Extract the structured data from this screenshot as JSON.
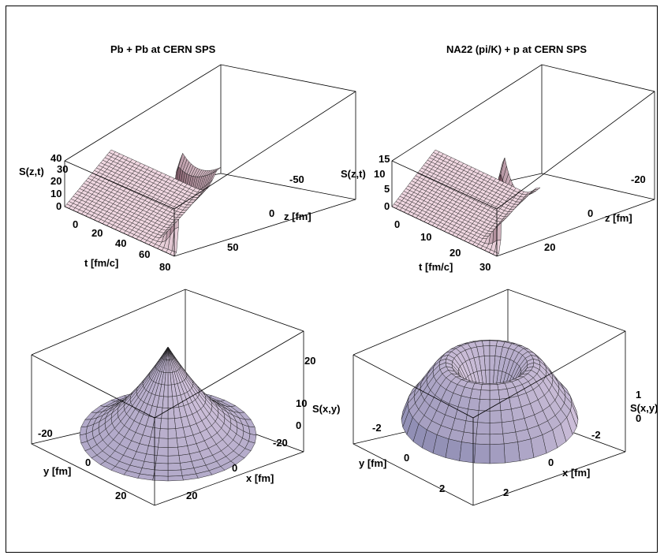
{
  "chart_data": [
    {
      "type": "surface",
      "title": "Pb + Pb at CERN SPS",
      "xlabel": "t [fm/c]",
      "ylabel": "z [fm]",
      "zlabel": "S(z,t)",
      "x_ticks": [
        "0",
        "20",
        "40",
        "60",
        "80"
      ],
      "y_ticks": [
        "-50",
        "0",
        "50"
      ],
      "z_ticks": [
        "0",
        "10",
        "20",
        "30",
        "40"
      ],
      "xlim": [
        0,
        80
      ],
      "ylim": [
        -70,
        70
      ],
      "zlim": [
        0,
        40
      ],
      "peak": {
        "t": 80,
        "z": 0,
        "S": 40
      }
    },
    {
      "type": "surface",
      "title": "NA22 (pi/K) + p at CERN SPS",
      "xlabel": "t [fm/c]",
      "ylabel": "z [fm]",
      "zlabel": "S(z,t)",
      "x_ticks": [
        "0",
        "10",
        "20",
        "30"
      ],
      "y_ticks": [
        "-20",
        "0",
        "20"
      ],
      "z_ticks": [
        "0",
        "5",
        "10",
        "15"
      ],
      "xlim": [
        0,
        30
      ],
      "ylim": [
        -30,
        30
      ],
      "zlim": [
        0,
        15
      ],
      "peak": {
        "t": 30,
        "z": 0,
        "S": 15
      }
    },
    {
      "type": "surface",
      "title": "",
      "xlabel": "x [fm]",
      "ylabel": "y [fm]",
      "zlabel": "S(x,y)",
      "x_ticks": [
        "-20",
        "0",
        "20"
      ],
      "y_ticks": [
        "-20",
        "0",
        "20"
      ],
      "z_ticks": [
        "0",
        "10",
        "20"
      ],
      "xlim": [
        -30,
        30
      ],
      "ylim": [
        -30,
        30
      ],
      "zlim": [
        0,
        28
      ],
      "shape": "cone",
      "peak": {
        "x": 0,
        "y": 0,
        "S": 28
      }
    },
    {
      "type": "surface",
      "title": "",
      "xlabel": "x [fm]",
      "ylabel": "y [fm]",
      "zlabel": "S(x,y)",
      "x_ticks": [
        "-2",
        "0",
        "2"
      ],
      "y_ticks": [
        "-2",
        "0",
        "2"
      ],
      "z_ticks": [
        "0",
        "1"
      ],
      "xlim": [
        -3.5,
        3.5
      ],
      "ylim": [
        -3.5,
        3.5
      ],
      "zlim": [
        0,
        1.6
      ],
      "shape": "ring",
      "peak": {
        "r": 1.0,
        "S": 1.5
      }
    }
  ]
}
